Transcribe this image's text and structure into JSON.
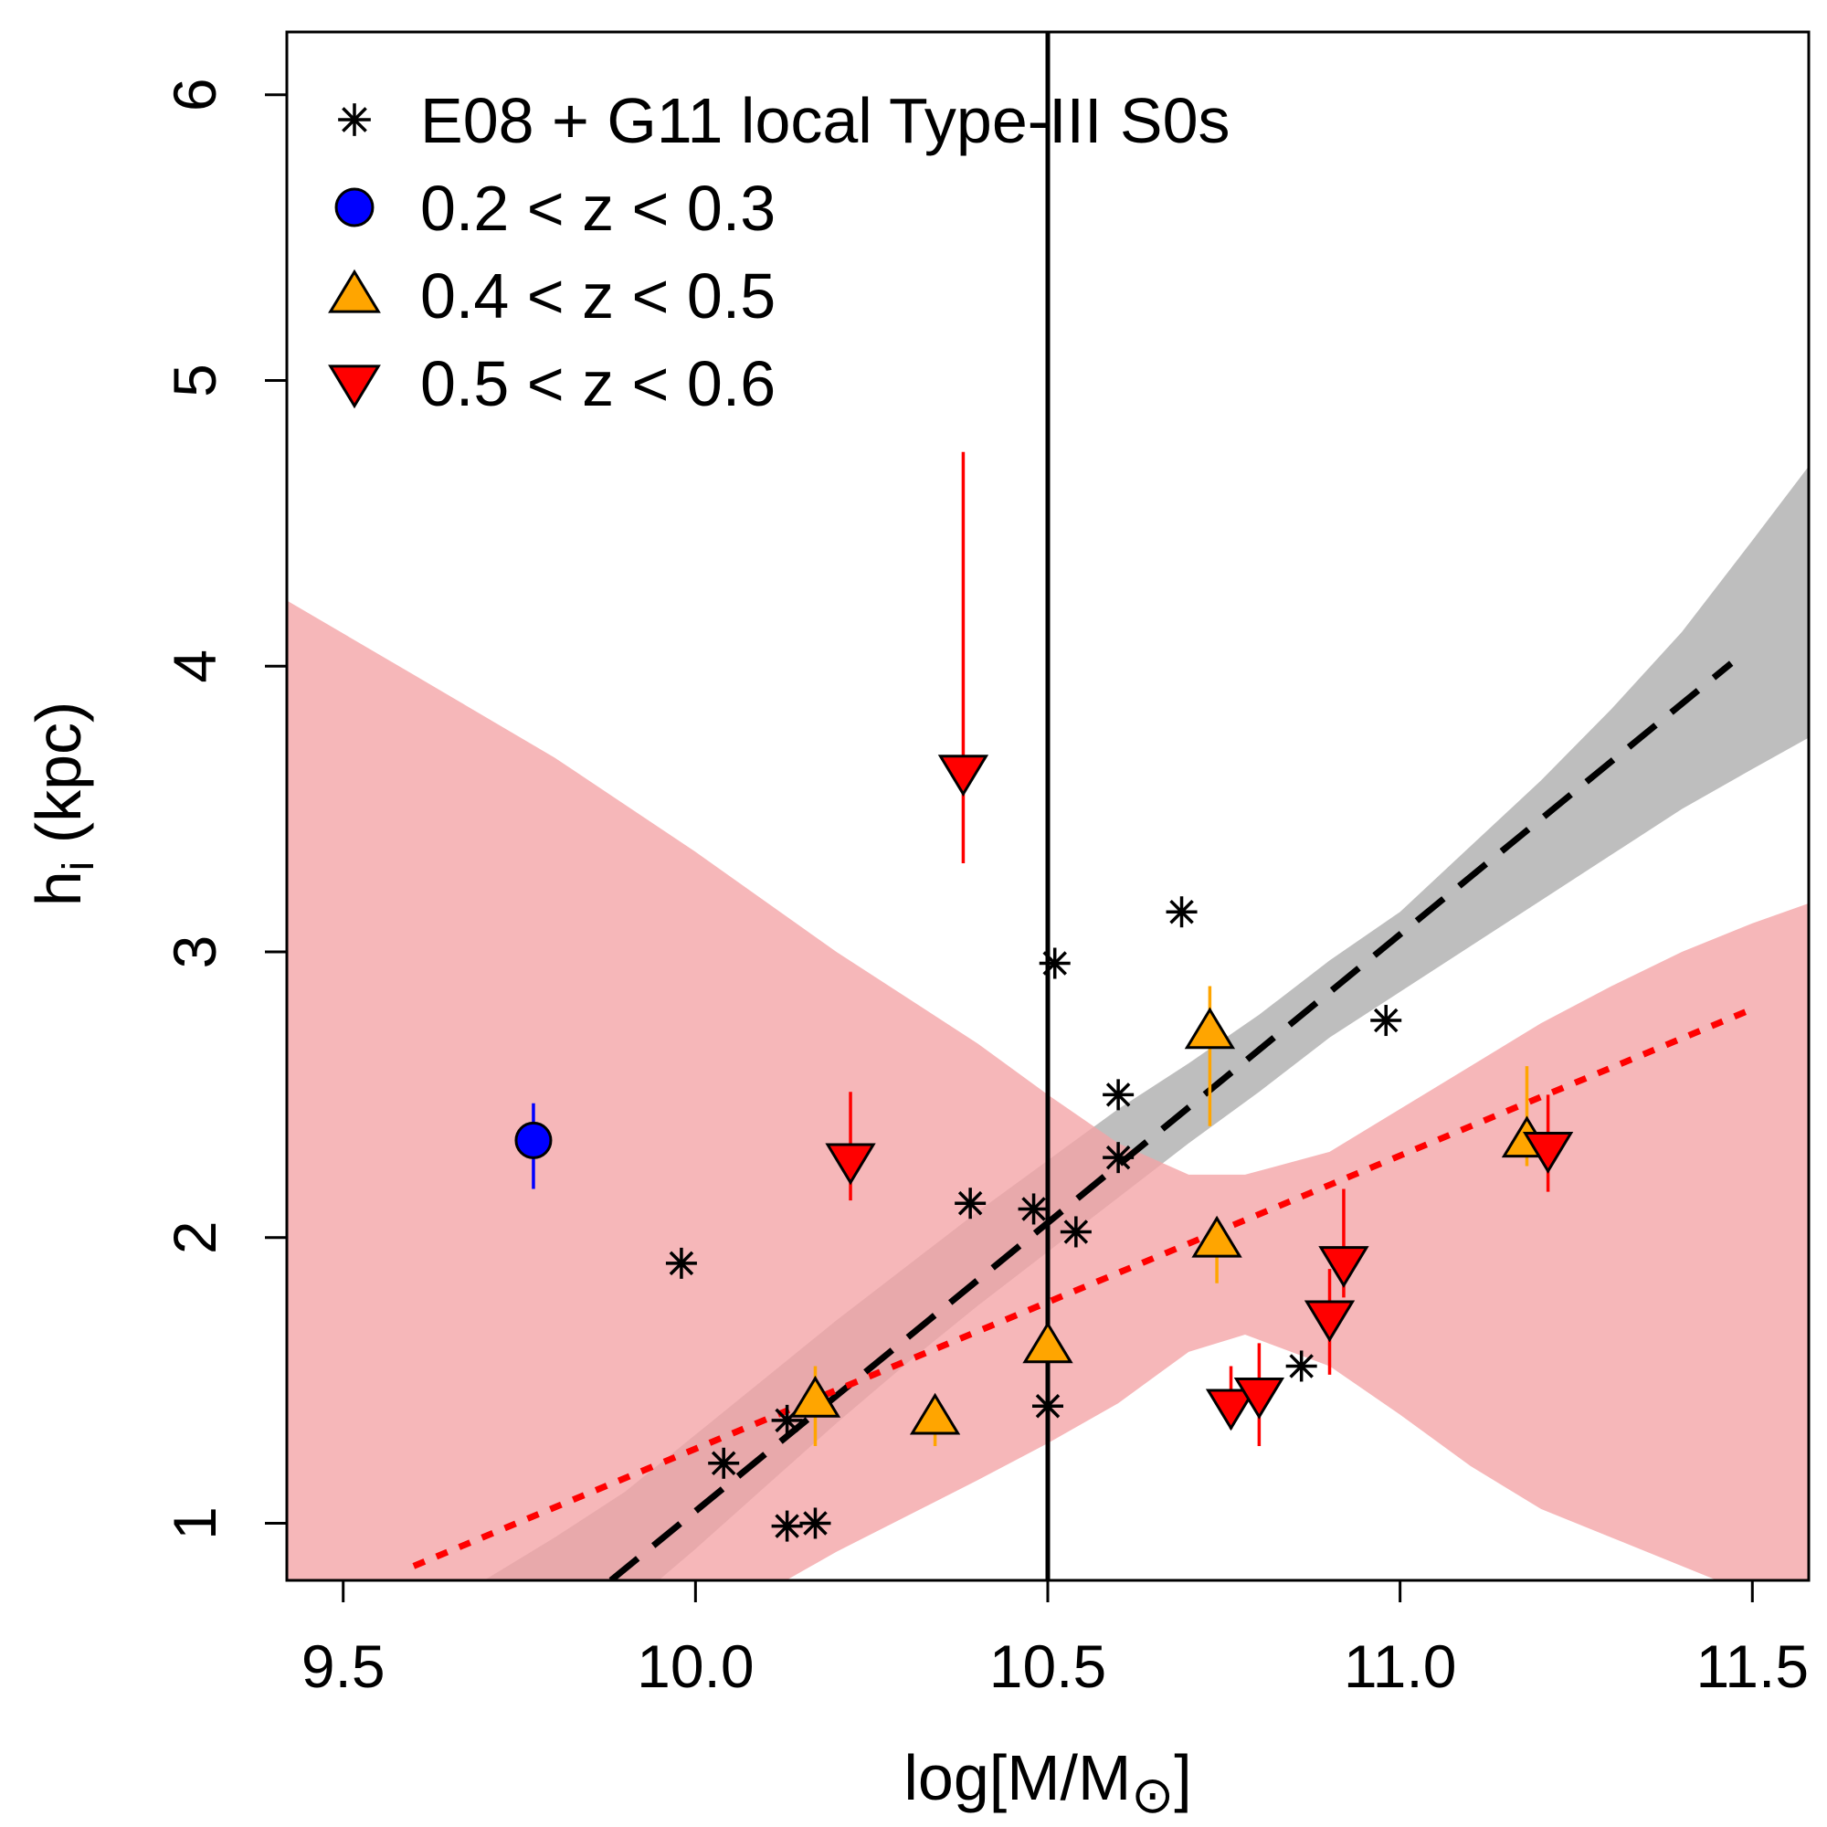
{
  "chart_data": {
    "type": "scatter",
    "xlabel": "log[M/M",
    "xlabel_symbol": "⊙",
    "xlabel_close": "]",
    "ylabel": "h",
    "ylabel_sub": "i",
    "ylabel_units": " (kpc)",
    "xlim": [
      9.42,
      11.58
    ],
    "ylim": [
      0.8,
      6.22
    ],
    "x_ticks": [
      9.5,
      10.0,
      10.5,
      11.0,
      11.5
    ],
    "x_tick_labels": [
      "9.5",
      "10.0",
      "10.5",
      "11.0",
      "11.5"
    ],
    "y_ticks": [
      1,
      2,
      3,
      4,
      5,
      6
    ],
    "y_tick_labels": [
      "1",
      "2",
      "3",
      "4",
      "5",
      "6"
    ],
    "legend_position": "top-left",
    "vertical_line_x": 10.5,
    "colors": {
      "local": "#000000",
      "z02": "#0000ff",
      "z04": "#ffa500",
      "z05": "#ff0000",
      "band_local": "#bebebe",
      "band_z": "#f4a3a5"
    },
    "legend": [
      {
        "label": "E08 + G11 local Type-III S0s",
        "marker": "asterisk",
        "color": "#000000"
      },
      {
        "label": "0.2 < z < 0.3",
        "marker": "circle",
        "color": "#0000ff"
      },
      {
        "label": "0.4 < z < 0.5",
        "marker": "triangle-up",
        "color": "#ffa500"
      },
      {
        "label": "0.5 < z < 0.6",
        "marker": "triangle-down",
        "color": "#ff0000"
      }
    ],
    "series": [
      {
        "name": "E08 + G11 local Type-III S0s",
        "marker": "asterisk",
        "points": [
          {
            "x": 9.98,
            "y": 1.91
          },
          {
            "x": 10.04,
            "y": 1.21
          },
          {
            "x": 10.13,
            "y": 1.36
          },
          {
            "x": 10.13,
            "y": 0.99
          },
          {
            "x": 10.17,
            "y": 1.0
          },
          {
            "x": 10.39,
            "y": 2.12
          },
          {
            "x": 10.48,
            "y": 2.1
          },
          {
            "x": 10.5,
            "y": 1.41
          },
          {
            "x": 10.51,
            "y": 2.96
          },
          {
            "x": 10.54,
            "y": 2.02
          },
          {
            "x": 10.6,
            "y": 2.28
          },
          {
            "x": 10.6,
            "y": 2.5
          },
          {
            "x": 10.69,
            "y": 3.14
          },
          {
            "x": 10.86,
            "y": 1.55
          },
          {
            "x": 10.98,
            "y": 2.76
          }
        ]
      },
      {
        "name": "0.2 < z < 0.3",
        "marker": "circle",
        "points": [
          {
            "x": 9.77,
            "y": 2.34,
            "ylo": 2.17,
            "yhi": 2.47
          }
        ]
      },
      {
        "name": "0.4 < z < 0.5",
        "marker": "triangle-up",
        "points": [
          {
            "x": 10.17,
            "y": 1.43,
            "ylo": 1.27,
            "yhi": 1.55
          },
          {
            "x": 10.34,
            "y": 1.37,
            "ylo": 1.27,
            "yhi": 1.37
          },
          {
            "x": 10.5,
            "y": 1.62,
            "ylo": 1.62,
            "yhi": 1.62
          },
          {
            "x": 10.73,
            "y": 2.72,
            "ylo": 2.39,
            "yhi": 2.88
          },
          {
            "x": 10.74,
            "y": 1.99,
            "ylo": 1.84,
            "yhi": 2.07
          },
          {
            "x": 11.18,
            "y": 2.34,
            "ylo": 2.25,
            "yhi": 2.6
          }
        ]
      },
      {
        "name": "0.5 < z < 0.6",
        "marker": "triangle-down",
        "points": [
          {
            "x": 10.22,
            "y": 2.27,
            "ylo": 2.13,
            "yhi": 2.51
          },
          {
            "x": 10.38,
            "y": 3.63,
            "ylo": 3.31,
            "yhi": 4.75
          },
          {
            "x": 10.76,
            "y": 1.41,
            "ylo": 1.33,
            "yhi": 1.55
          },
          {
            "x": 10.8,
            "y": 1.45,
            "ylo": 1.27,
            "yhi": 1.63
          },
          {
            "x": 10.9,
            "y": 1.72,
            "ylo": 1.52,
            "yhi": 1.89
          },
          {
            "x": 10.92,
            "y": 1.91,
            "ylo": 1.79,
            "yhi": 2.17
          },
          {
            "x": 11.21,
            "y": 2.31,
            "ylo": 2.16,
            "yhi": 2.5
          }
        ]
      }
    ],
    "fits": [
      {
        "name": "local fit",
        "style": "dashed",
        "color": "#000000",
        "x": [
          9.88,
          11.47
        ],
        "y": [
          0.8,
          4.01
        ]
      },
      {
        "name": "z fit",
        "style": "dotted",
        "color": "#ff0000",
        "x": [
          9.6,
          11.5
        ],
        "y": [
          0.85,
          2.8
        ]
      }
    ],
    "bands": [
      {
        "name": "local fit confidence band",
        "color": "#bebebe",
        "x": [
          9.7,
          9.8,
          9.9,
          10.0,
          10.1,
          10.2,
          10.3,
          10.4,
          10.5,
          10.6,
          10.7,
          10.8,
          10.9,
          11.0,
          11.1,
          11.2,
          11.3,
          11.4,
          11.5,
          11.58
        ],
        "lower": [
          0.2,
          0.44,
          0.7,
          0.91,
          1.13,
          1.35,
          1.56,
          1.76,
          1.95,
          2.14,
          2.33,
          2.51,
          2.7,
          2.86,
          3.02,
          3.18,
          3.34,
          3.5,
          3.64,
          3.75
        ],
        "upper": [
          0.8,
          0.95,
          1.11,
          1.31,
          1.51,
          1.71,
          1.9,
          2.09,
          2.27,
          2.45,
          2.61,
          2.78,
          2.97,
          3.14,
          3.37,
          3.6,
          3.85,
          4.12,
          4.44,
          4.7
        ]
      },
      {
        "name": "z fit confidence band",
        "color": "#f4a3a5",
        "x": [
          9.42,
          9.6,
          9.8,
          10.0,
          10.2,
          10.4,
          10.5,
          10.6,
          10.7,
          10.78,
          10.9,
          11.0,
          11.1,
          11.2,
          11.3,
          11.4,
          11.5,
          11.58
        ],
        "lower": [
          0.0,
          0.1,
          0.35,
          0.62,
          0.9,
          1.15,
          1.28,
          1.42,
          1.6,
          1.66,
          1.55,
          1.38,
          1.2,
          1.05,
          0.95,
          0.85,
          0.75,
          0.7
        ],
        "upper": [
          4.23,
          3.97,
          3.68,
          3.35,
          3.0,
          2.68,
          2.5,
          2.33,
          2.22,
          2.22,
          2.3,
          2.45,
          2.6,
          2.75,
          2.88,
          3.0,
          3.1,
          3.17
        ]
      }
    ]
  }
}
